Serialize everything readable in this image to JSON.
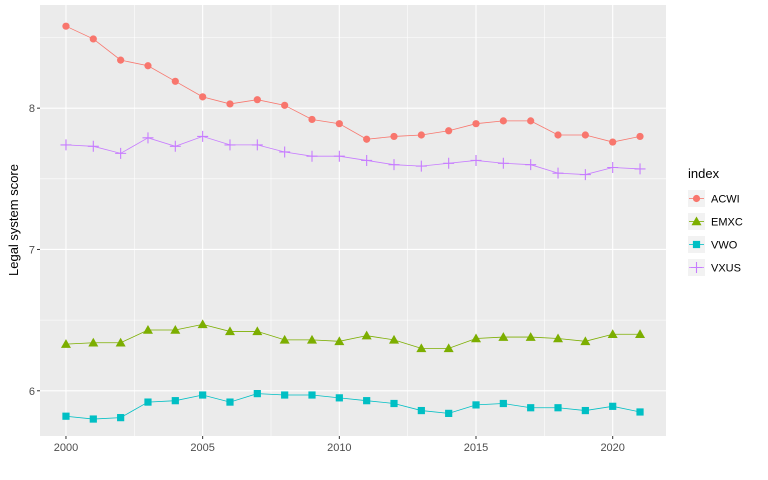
{
  "chart_data": {
    "type": "line",
    "title": "",
    "xlabel": "",
    "ylabel": "Legal system score",
    "xlim": [
      1999.05,
      2021.95
    ],
    "ylim": [
      5.68,
      8.73
    ],
    "x_ticks": [
      2000,
      2005,
      2010,
      2015,
      2020
    ],
    "y_ticks": [
      6,
      7,
      8
    ],
    "x_tick_labels": [
      "2000",
      "2005",
      "2010",
      "2015",
      "2020"
    ],
    "y_tick_labels": [
      "6",
      "7",
      "8"
    ],
    "grid": true,
    "legend": {
      "title": "index",
      "position": "right"
    },
    "x": [
      2000,
      2001,
      2002,
      2003,
      2004,
      2005,
      2006,
      2007,
      2008,
      2009,
      2010,
      2011,
      2012,
      2013,
      2014,
      2015,
      2016,
      2017,
      2018,
      2019,
      2020,
      2021
    ],
    "series": [
      {
        "name": "ACWI",
        "color": "#F8766D",
        "marker": "circle",
        "values": [
          8.58,
          8.49,
          8.34,
          8.3,
          8.19,
          8.08,
          8.03,
          8.06,
          8.02,
          7.92,
          7.89,
          7.78,
          7.8,
          7.81,
          7.84,
          7.89,
          7.91,
          7.91,
          7.81,
          7.81,
          7.76,
          7.8
        ]
      },
      {
        "name": "EMXC",
        "color": "#7CAE00",
        "marker": "triangle",
        "values": [
          6.33,
          6.34,
          6.34,
          6.43,
          6.43,
          6.47,
          6.42,
          6.42,
          6.36,
          6.36,
          6.35,
          6.39,
          6.36,
          6.3,
          6.3,
          6.37,
          6.38,
          6.38,
          6.37,
          6.35,
          6.4,
          6.4
        ]
      },
      {
        "name": "VWO",
        "color": "#00BFC4",
        "marker": "square",
        "values": [
          5.82,
          5.8,
          5.81,
          5.92,
          5.93,
          5.97,
          5.92,
          5.98,
          5.97,
          5.97,
          5.95,
          5.93,
          5.91,
          5.86,
          5.84,
          5.9,
          5.91,
          5.88,
          5.88,
          5.86,
          5.89,
          5.85
        ]
      },
      {
        "name": "VXUS",
        "color": "#C77CFF",
        "marker": "plus",
        "values": [
          7.74,
          7.73,
          7.68,
          7.79,
          7.73,
          7.8,
          7.74,
          7.74,
          7.69,
          7.66,
          7.66,
          7.63,
          7.6,
          7.59,
          7.61,
          7.63,
          7.61,
          7.6,
          7.54,
          7.53,
          7.58,
          7.57
        ]
      }
    ]
  }
}
